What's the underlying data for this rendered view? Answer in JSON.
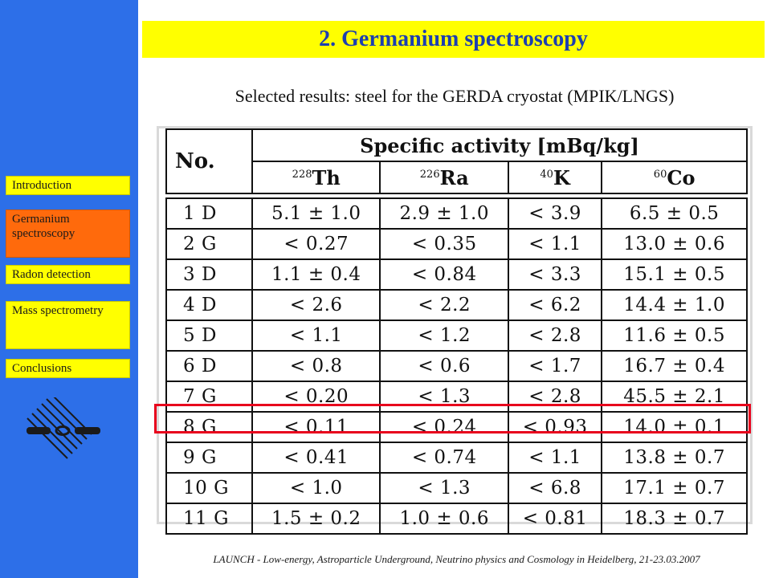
{
  "nav": {
    "items": [
      {
        "label": "Introduction",
        "active": false
      },
      {
        "label": "Germanium spectroscopy",
        "active": true
      },
      {
        "label": "Radon detection",
        "active": false
      },
      {
        "label": "Mass spectrometry",
        "active": false
      },
      {
        "label": "Conclusions",
        "active": false
      }
    ]
  },
  "slide": {
    "title": "2. Germanium spectroscopy",
    "subtitle": "Selected results: steel for the GERDA cryostat (MPIK/LNGS)"
  },
  "table": {
    "no_header": "No.",
    "group_header": "Specific activity [mBq/kg]",
    "isotopes": [
      {
        "mass": "228",
        "element": "Th"
      },
      {
        "mass": "226",
        "element": "Ra"
      },
      {
        "mass": "40",
        "element": "K"
      },
      {
        "mass": "60",
        "element": "Co"
      }
    ],
    "rows": [
      {
        "no": "1 D",
        "th": "5.1 ± 1.0",
        "ra": "2.9 ± 1.0",
        "k": "< 3.9",
        "co": "6.5 ± 0.5"
      },
      {
        "no": "2 G",
        "th": "< 0.27",
        "ra": "< 0.35",
        "k": "< 1.1",
        "co": "13.0 ± 0.6"
      },
      {
        "no": "3 D",
        "th": "1.1 ± 0.4",
        "ra": "< 0.84",
        "k": "< 3.3",
        "co": "15.1 ± 0.5"
      },
      {
        "no": "4 D",
        "th": "< 2.6",
        "ra": "< 2.2",
        "k": "< 6.2",
        "co": "14.4 ± 1.0"
      },
      {
        "no": "5 D",
        "th": "< 1.1",
        "ra": "< 1.2",
        "k": "< 2.8",
        "co": "11.6 ± 0.5"
      },
      {
        "no": "6 D",
        "th": "< 0.8",
        "ra": "< 0.6",
        "k": "< 1.7",
        "co": "16.7 ± 0.4"
      },
      {
        "no": "7 G",
        "th": "< 0.20",
        "ra": "< 1.3",
        "k": "< 2.8",
        "co": "45.5 ± 2.1"
      },
      {
        "no": "8 G",
        "th": "< 0.11",
        "ra": "< 0.24",
        "k": "< 0.93",
        "co": "14.0 ± 0.1"
      },
      {
        "no": "9 G",
        "th": "< 0.41",
        "ra": "< 0.74",
        "k": "< 1.1",
        "co": "13.8 ± 0.7"
      },
      {
        "no": "10 G",
        "th": "< 1.0",
        "ra": "< 1.3",
        "k": "< 6.8",
        "co": "17.1 ± 0.7"
      },
      {
        "no": "11 G",
        "th": "1.5 ± 0.2",
        "ra": "1.0 ± 0.6",
        "k": "< 0.81",
        "co": "18.3 ± 0.7"
      }
    ],
    "highlighted_row": "8 G"
  },
  "footer": {
    "text": "LAUNCH - Low-energy, Astroparticle Underground, Neutrino physics and Cosmology in Heidelberg, 21-23.03.2007"
  },
  "colors": {
    "sidebar": "#2d6fe8",
    "nav_inactive": "#ffff00",
    "nav_active": "#ff6a0c",
    "title_bg": "#ffff00",
    "title_text": "#1d3fb0",
    "highlight": "#e8001c"
  },
  "icons": {
    "logo": "mpik-logo-icon"
  }
}
